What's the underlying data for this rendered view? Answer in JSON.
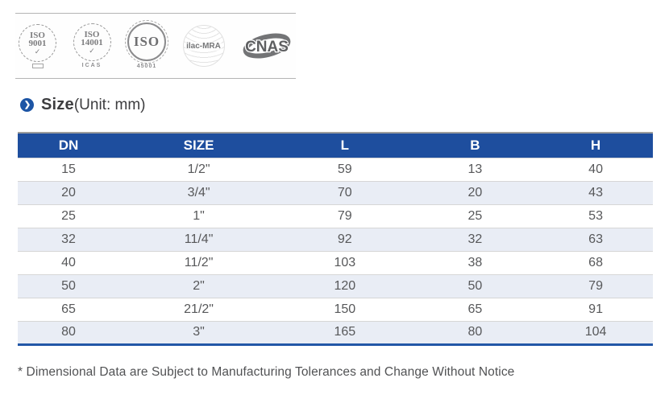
{
  "certifications": {
    "badges": [
      {
        "id": "iso-9001",
        "line1": "ISO",
        "line2": "9001",
        "check": "✓"
      },
      {
        "id": "iso-14001",
        "line1": "ISO",
        "line2": "14001",
        "check": "✓",
        "footer": "ICAS"
      },
      {
        "id": "iso-45001",
        "label": "ISO",
        "footer": "45001"
      },
      {
        "id": "ilac-mra",
        "label": "ilac-MRA"
      },
      {
        "id": "cnas",
        "label": "CNAS"
      }
    ]
  },
  "section": {
    "icon_glyph": "❯",
    "title": "Size",
    "unit": "(Unit: mm)"
  },
  "table": {
    "headers": [
      "DN",
      "SIZE",
      "L",
      "B",
      "H"
    ],
    "rows": [
      [
        "15",
        "1/2\"",
        "59",
        "13",
        "40"
      ],
      [
        "20",
        "3/4\"",
        "70",
        "20",
        "43"
      ],
      [
        "25",
        "1\"",
        "79",
        "25",
        "53"
      ],
      [
        "32",
        "11/4\"",
        "92",
        "32",
        "63"
      ],
      [
        "40",
        "11/2\"",
        "103",
        "38",
        "68"
      ],
      [
        "50",
        "2\"",
        "120",
        "50",
        "79"
      ],
      [
        "65",
        "21/2\"",
        "150",
        "65",
        "91"
      ],
      [
        "80",
        "3\"",
        "165",
        "80",
        "104"
      ]
    ]
  },
  "footnote": "* Dimensional Data are Subject to Manufacturing Tolerances and Change Without Notice",
  "colors": {
    "header_bg": "#1e4e9e",
    "row_alt_bg": "#e9edf5",
    "table_bottom_border": "#2257a7",
    "accent_blue": "#1d55a5",
    "body_text": "#57585a"
  }
}
